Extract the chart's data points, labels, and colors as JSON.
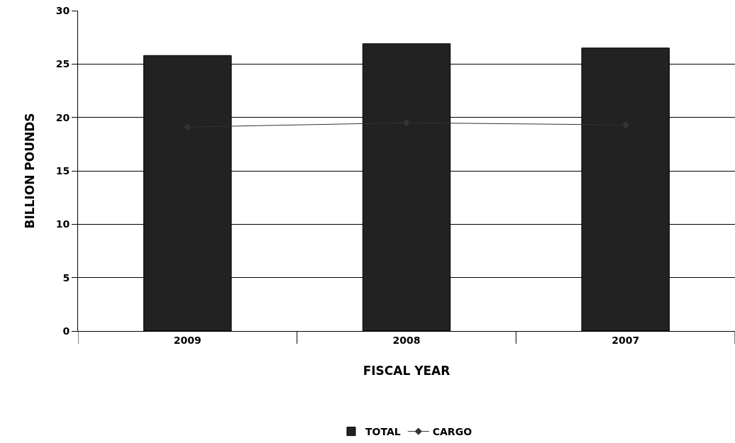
{
  "chart_data": {
    "type": "bar",
    "xlabel": "FISCAL YEAR",
    "ylabel": "BILLION POUNDS",
    "categories": [
      "2009",
      "2008",
      "2007"
    ],
    "series": [
      {
        "name": "TOTAL",
        "color": "#222222",
        "values": [
          25.8,
          26.9,
          26.5
        ]
      },
      {
        "name": "CARGO",
        "type": "line",
        "color": "#333333",
        "values": [
          19.1,
          19.5,
          19.3
        ],
        "marker": "diamond",
        "line_style": "solid"
      }
    ],
    "ylim": [
      0,
      30
    ],
    "yticks": [
      0,
      5,
      10,
      15,
      20,
      25,
      30
    ],
    "grid": "y",
    "legend": "bottom"
  }
}
